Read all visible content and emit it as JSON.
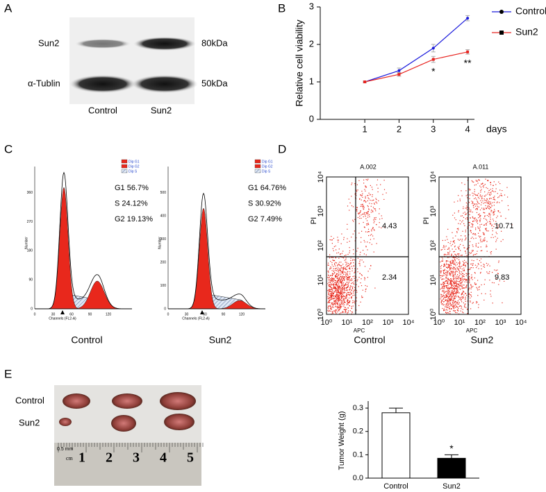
{
  "panel_labels": [
    "A",
    "B",
    "C",
    "D",
    "E"
  ],
  "panel_a": {
    "rows": [
      "Sun2",
      "α-Tublin"
    ],
    "sizes": [
      "80kDa",
      "50kDa"
    ],
    "lanes": [
      "Control",
      "Sun2"
    ]
  },
  "chart_data": [
    {
      "type": "line",
      "x": [
        1,
        2,
        3,
        4
      ],
      "xlim": [
        -0.3,
        4.2
      ],
      "xticks": [
        1,
        2,
        3,
        4
      ],
      "xlabel": "days",
      "ylabel": "Relative cell viability",
      "ylim": [
        0,
        3
      ],
      "yticks": [
        0,
        1,
        2,
        3
      ],
      "series": [
        {
          "name": "Control",
          "color": "#1a1adc",
          "marker": "circle",
          "values": [
            1.0,
            1.3,
            1.9,
            2.7
          ],
          "errors": [
            0.02,
            0.07,
            0.1,
            0.07
          ]
        },
        {
          "name": "Sun2",
          "color": "#e8231f",
          "marker": "square",
          "values": [
            1.0,
            1.2,
            1.6,
            1.8
          ],
          "errors": [
            0.02,
            0.05,
            0.08,
            0.06
          ]
        }
      ],
      "annotations": [
        {
          "text": "*",
          "x": 3
        },
        {
          "text": "**",
          "x": 4
        }
      ]
    },
    {
      "type": "bar",
      "categories": [
        "Control",
        "Sun2"
      ],
      "values": [
        0.28,
        0.085
      ],
      "errors": [
        0.02,
        0.015
      ],
      "colors": [
        "#ffffff",
        "#000000"
      ],
      "ylabel": "Tumor Weight (g)",
      "ylim": [
        0,
        0.33
      ],
      "yticks": [
        {
          "value": 0,
          "label": "0.0"
        },
        0.1,
        0.2,
        0.3
      ],
      "annotations": [
        {
          "text": "*",
          "x": "Sun2"
        }
      ]
    }
  ],
  "panel_c": {
    "plots": [
      {
        "title": "Control",
        "stats": [
          "G1 56.7%",
          "S  24.12%",
          "G2 19.13%"
        ],
        "yticks": [
          "0",
          "90",
          "180",
          "270",
          "360"
        ]
      },
      {
        "title": "Sun2",
        "stats": [
          "G1 64.76%",
          "S  30.92%",
          "G2 7.49%"
        ],
        "yticks": [
          "0",
          "100",
          "200",
          "300",
          "400",
          "500"
        ]
      }
    ],
    "xticks": [
      "0",
      "30",
      "60",
      "90",
      "120"
    ],
    "xlabel": "Channels (FL2-A)",
    "ylabel": "Number",
    "legend": [
      "Dip G1",
      "Dip G2",
      "Dip S"
    ]
  },
  "panel_d": {
    "plots": [
      {
        "title": "Control",
        "file": "A.002",
        "upper": "4.43",
        "lower": "2.34"
      },
      {
        "title": "Sun2",
        "file": "A.011",
        "upper": "10.71",
        "lower": "9.83"
      }
    ],
    "ticks": [
      "10⁰",
      "10¹",
      "10²",
      "10³",
      "10⁴"
    ],
    "xlabel": "APC",
    "ylabel": "PI"
  },
  "panel_e": {
    "rows": [
      "Control",
      "Sun2"
    ],
    "ruler": [
      "1",
      "2",
      "3",
      "4",
      "5"
    ],
    "unit": "cm",
    "scale": "0.5 mm"
  }
}
